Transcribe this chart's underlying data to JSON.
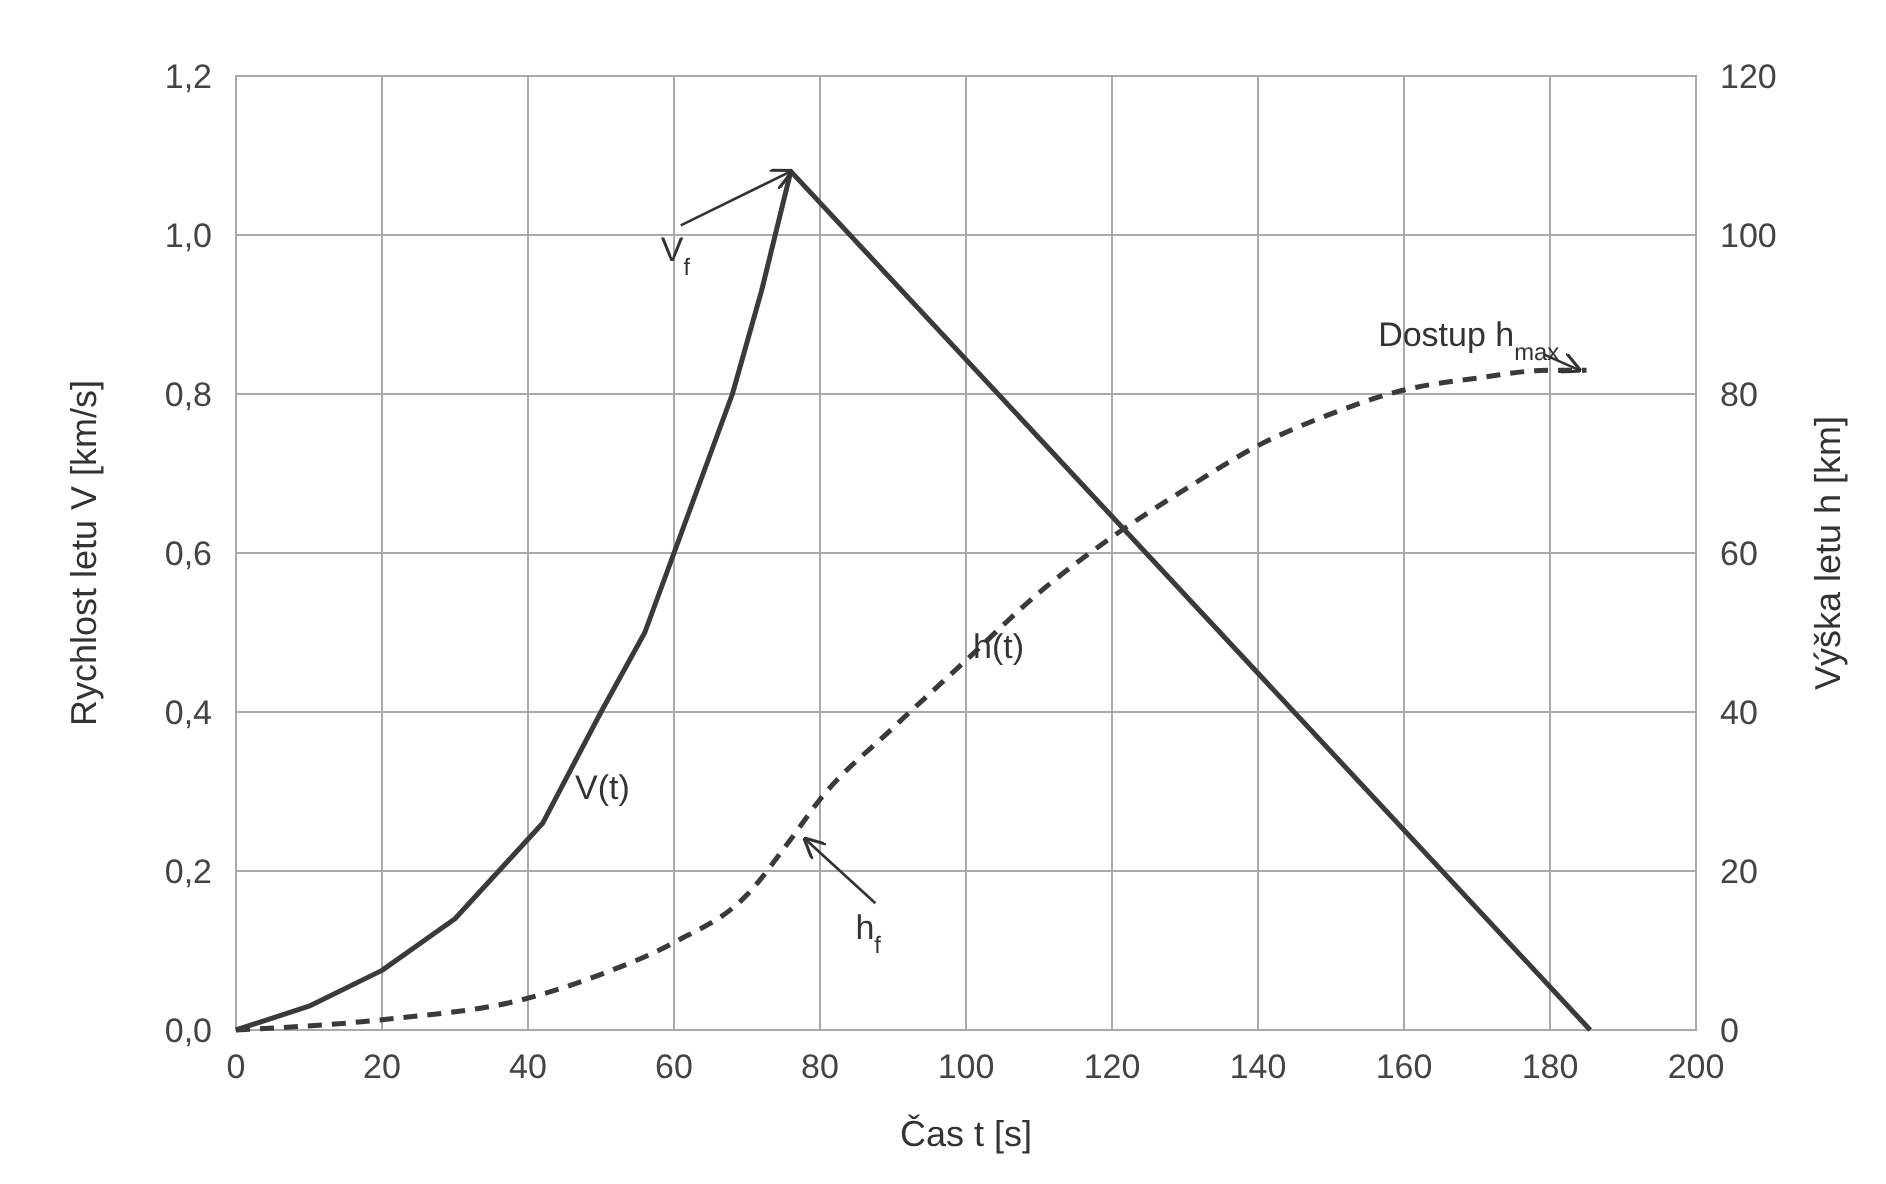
{
  "chart_data": {
    "type": "line",
    "xlabel": "Čas  t [s]",
    "ylabel": "Rychlost letu  V [km/s]",
    "y2label": "Výška letu  h [km]",
    "xlim": [
      0,
      200
    ],
    "xticks": [
      0,
      20,
      40,
      60,
      80,
      100,
      120,
      140,
      160,
      180,
      200
    ],
    "ylim": [
      0,
      1.2
    ],
    "yticks": [
      {
        "value": 0,
        "label": "0,0"
      },
      {
        "value": 0.2,
        "label": "0,2"
      },
      {
        "value": 0.4,
        "label": "0,4"
      },
      {
        "value": 0.6,
        "label": "0,6"
      },
      {
        "value": 0.8,
        "label": "0,8"
      },
      {
        "value": 1,
        "label": "1,0"
      },
      {
        "value": 1.2,
        "label": "1,2"
      }
    ],
    "y2lim": [
      0,
      120
    ],
    "y2ticks": [
      0,
      20,
      40,
      60,
      80,
      100,
      120
    ],
    "grid": true,
    "series": [
      {
        "name": "V(t)",
        "color": "#3a3a3a",
        "line_style": "solid",
        "x": [
          0,
          10,
          20,
          30,
          36,
          42,
          50,
          56,
          60,
          64,
          68,
          72,
          76,
          130.75,
          185.5
        ],
        "values": [
          0,
          0.03,
          0.075,
          0.14,
          0.2,
          0.26,
          0.4,
          0.5,
          0.6,
          0.7,
          0.8,
          0.93,
          1.08,
          0.54,
          0
        ]
      },
      {
        "name": "h(t)",
        "color": "#3a3a3a",
        "line_style": "dashed",
        "axis": "y2",
        "x": [
          0,
          20,
          40,
          50,
          60,
          70,
          76,
          80,
          90,
          100,
          110,
          120,
          130,
          140,
          150,
          160,
          170,
          180,
          185
        ],
        "values": [
          0,
          1.3,
          4,
          7,
          11,
          17,
          24,
          29,
          38,
          46.5,
          55,
          62,
          68,
          73.5,
          77.5,
          80.5,
          82,
          83,
          83
        ]
      }
    ],
    "annotations": [
      {
        "text": "V$_{f}$",
        "x": 76,
        "y": 1.08
      },
      {
        "text": "h$_{f}$",
        "x": 78,
        "y": 0.24
      },
      {
        "text": "Dostup h$_{max}$",
        "x": 184,
        "y": 0.83
      }
    ]
  }
}
